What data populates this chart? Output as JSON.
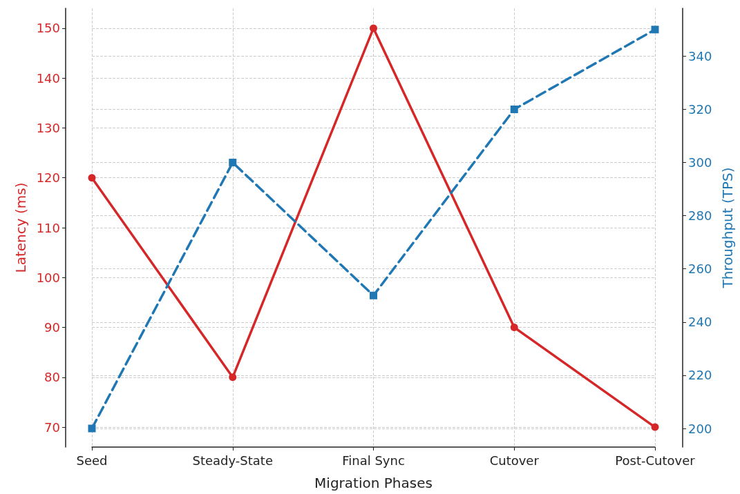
{
  "chart_data": {
    "type": "line",
    "xlabel": "Migration Phases",
    "ylabel": "Latency (ms)",
    "y2label": "Throughput (TPS)",
    "categories": [
      "Seed",
      "Steady-State",
      "Final Sync",
      "Cutover",
      "Post-Cutover"
    ],
    "series": [
      {
        "color": "#d62728",
        "values": [
          120,
          80,
          150,
          90,
          70
        ],
        "marker": "circle",
        "line_style": "solid"
      },
      {
        "color": "#1f77b4",
        "values": [
          200,
          300,
          250,
          320,
          350
        ],
        "axis": "y2",
        "marker": "square",
        "line_style": "dashed"
      }
    ],
    "ylim": [
      66,
      154
    ],
    "yticks": [
      70,
      80,
      90,
      100,
      110,
      120,
      130,
      140,
      150
    ],
    "y2lim": [
      193,
      358
    ],
    "y2ticks": [
      200,
      220,
      240,
      260,
      280,
      300,
      320,
      340
    ],
    "grid": true
  }
}
